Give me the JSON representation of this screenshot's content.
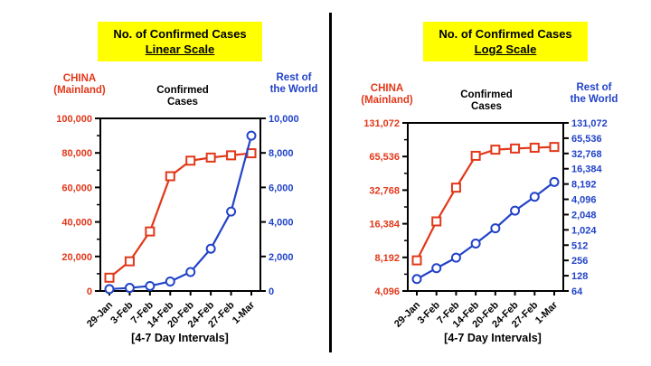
{
  "colors": {
    "china_red": "#E2381A",
    "world_blue": "#2243C8",
    "title_bg": "#FFFF00",
    "axis_black": "#000000"
  },
  "chart_data": [
    {
      "type": "line",
      "title": "No. of Confirmed Cases",
      "subtitle": "Linear Scale",
      "center_label": {
        "line1": "Confirmed",
        "line2": "Cases"
      },
      "left_axis_title": {
        "line1": "CHINA",
        "line2": "(Mainland)"
      },
      "right_axis_title": {
        "line1": "Rest of",
        "line2": "the World"
      },
      "xlabel": "[4-7 Day Intervals]",
      "categories": [
        "29-Jan",
        "3-Feb",
        "7-Feb",
        "14-Feb",
        "20-Feb",
        "24-Feb",
        "27-Feb",
        "1-Mar"
      ],
      "series": [
        {
          "name": "CHINA (Mainland)",
          "axis": "left",
          "marker": "square",
          "color_key": "china_red",
          "values": [
            7700,
            17200,
            34500,
            66500,
            75500,
            77300,
            78600,
            79800
          ]
        },
        {
          "name": "Rest of the World",
          "axis": "right",
          "marker": "circle",
          "color_key": "world_blue",
          "values": [
            110,
            180,
            290,
            550,
            1100,
            2450,
            4600,
            9000
          ]
        }
      ],
      "left_axis": {
        "scale": "linear",
        "min": 0,
        "max": 100000,
        "color_key": "china_red",
        "tick_values": [
          0,
          20000,
          40000,
          60000,
          80000,
          100000
        ],
        "tick_labels": [
          "0",
          "20,000",
          "40,000",
          "60,000",
          "80,000",
          "100,000"
        ],
        "minor_ticks": true
      },
      "right_axis": {
        "scale": "linear",
        "min": 0,
        "max": 10000,
        "color_key": "world_blue",
        "tick_values": [
          0,
          2000,
          4000,
          6000,
          8000,
          10000
        ],
        "tick_labels": [
          "0",
          "2,000",
          "4,000",
          "6,000",
          "8,000",
          "10,000"
        ],
        "minor_ticks": false
      },
      "grid": false,
      "legend": "none"
    },
    {
      "type": "line",
      "title": "No. of Confirmed Cases",
      "subtitle": "Log2 Scale",
      "center_label": {
        "line1": "Confirmed",
        "line2": "Cases"
      },
      "left_axis_title": {
        "line1": "CHINA",
        "line2": "(Mainland)"
      },
      "right_axis_title": {
        "line1": "Rest of",
        "line2": "the World"
      },
      "xlabel": "[4-7 Day Intervals]",
      "categories": [
        "29-Jan",
        "3-Feb",
        "7-Feb",
        "14-Feb",
        "20-Feb",
        "24-Feb",
        "27-Feb",
        "1-Mar"
      ],
      "series": [
        {
          "name": "CHINA (Mainland)",
          "axis": "left",
          "marker": "square",
          "color_key": "china_red",
          "values": [
            7700,
            17200,
            34500,
            66500,
            75500,
            77300,
            78600,
            79800
          ]
        },
        {
          "name": "Rest of the World",
          "axis": "right",
          "marker": "circle",
          "color_key": "world_blue",
          "values": [
            110,
            180,
            290,
            550,
            1100,
            2450,
            4600,
            9000
          ]
        }
      ],
      "left_axis": {
        "scale": "log2",
        "min": 4096,
        "max": 131072,
        "color_key": "china_red",
        "tick_values": [
          4096,
          8192,
          16384,
          32768,
          65536,
          131072
        ],
        "tick_labels": [
          "4,096",
          "8,192",
          "16,384",
          "32,768",
          "65,536",
          "131,072"
        ],
        "minor_ticks": true
      },
      "right_axis": {
        "scale": "log2",
        "min": 64,
        "max": 131072,
        "color_key": "world_blue",
        "tick_values": [
          64,
          128,
          256,
          512,
          1024,
          2048,
          4096,
          8192,
          16384,
          32768,
          65536,
          131072
        ],
        "tick_labels": [
          "64",
          "128",
          "256",
          "512",
          "1,024",
          "2,048",
          "4,096",
          "8,192",
          "16,384",
          "32,768",
          "65,536",
          "131,072"
        ],
        "minor_ticks": false
      },
      "grid": false,
      "legend": "none"
    }
  ]
}
